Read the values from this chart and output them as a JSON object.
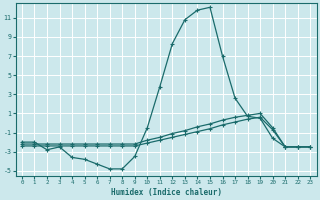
{
  "title": "",
  "xlabel": "Humidex (Indice chaleur)",
  "ylabel": "",
  "bg_color": "#cce8ec",
  "line_color": "#1a6b6b",
  "grid_color": "#ffffff",
  "xlim": [
    -0.5,
    23.5
  ],
  "ylim": [
    -5.5,
    12.5
  ],
  "xticks": [
    0,
    1,
    2,
    3,
    4,
    5,
    6,
    7,
    8,
    9,
    10,
    11,
    12,
    13,
    14,
    15,
    16,
    17,
    18,
    19,
    20,
    21,
    22,
    23
  ],
  "yticks": [
    -5,
    -3,
    -1,
    1,
    3,
    5,
    7,
    9,
    11
  ],
  "line1_x": [
    0,
    1,
    2,
    3,
    4,
    5,
    6,
    7,
    8,
    9,
    10,
    11,
    12,
    13,
    14,
    15,
    16,
    17,
    18,
    19,
    20,
    21,
    22,
    23
  ],
  "line1_y": [
    -2.0,
    -2.0,
    -2.8,
    -2.5,
    -3.6,
    -3.8,
    -4.3,
    -4.8,
    -4.8,
    -3.5,
    -0.5,
    3.8,
    8.3,
    10.8,
    11.8,
    12.1,
    7.0,
    2.6,
    0.7,
    0.5,
    -1.6,
    -2.5,
    -2.5,
    -2.5
  ],
  "line2_x": [
    0,
    1,
    2,
    3,
    4,
    5,
    6,
    7,
    8,
    9,
    10,
    11,
    12,
    13,
    14,
    15,
    16,
    17,
    18,
    19,
    20,
    21,
    22,
    23
  ],
  "line2_y": [
    -2.2,
    -2.2,
    -2.2,
    -2.2,
    -2.2,
    -2.2,
    -2.2,
    -2.2,
    -2.2,
    -2.2,
    -1.8,
    -1.5,
    -1.1,
    -0.8,
    -0.4,
    -0.1,
    0.3,
    0.6,
    0.8,
    1.0,
    -0.5,
    -2.5,
    -2.5,
    -2.5
  ],
  "line3_x": [
    0,
    1,
    2,
    3,
    4,
    5,
    6,
    7,
    8,
    9,
    10,
    11,
    12,
    13,
    14,
    15,
    16,
    17,
    18,
    19,
    20,
    21,
    22,
    23
  ],
  "line3_y": [
    -2.4,
    -2.4,
    -2.4,
    -2.4,
    -2.4,
    -2.4,
    -2.4,
    -2.4,
    -2.4,
    -2.4,
    -2.1,
    -1.8,
    -1.5,
    -1.2,
    -0.9,
    -0.6,
    -0.2,
    0.1,
    0.4,
    0.6,
    -0.7,
    -2.5,
    -2.5,
    -2.5
  ]
}
